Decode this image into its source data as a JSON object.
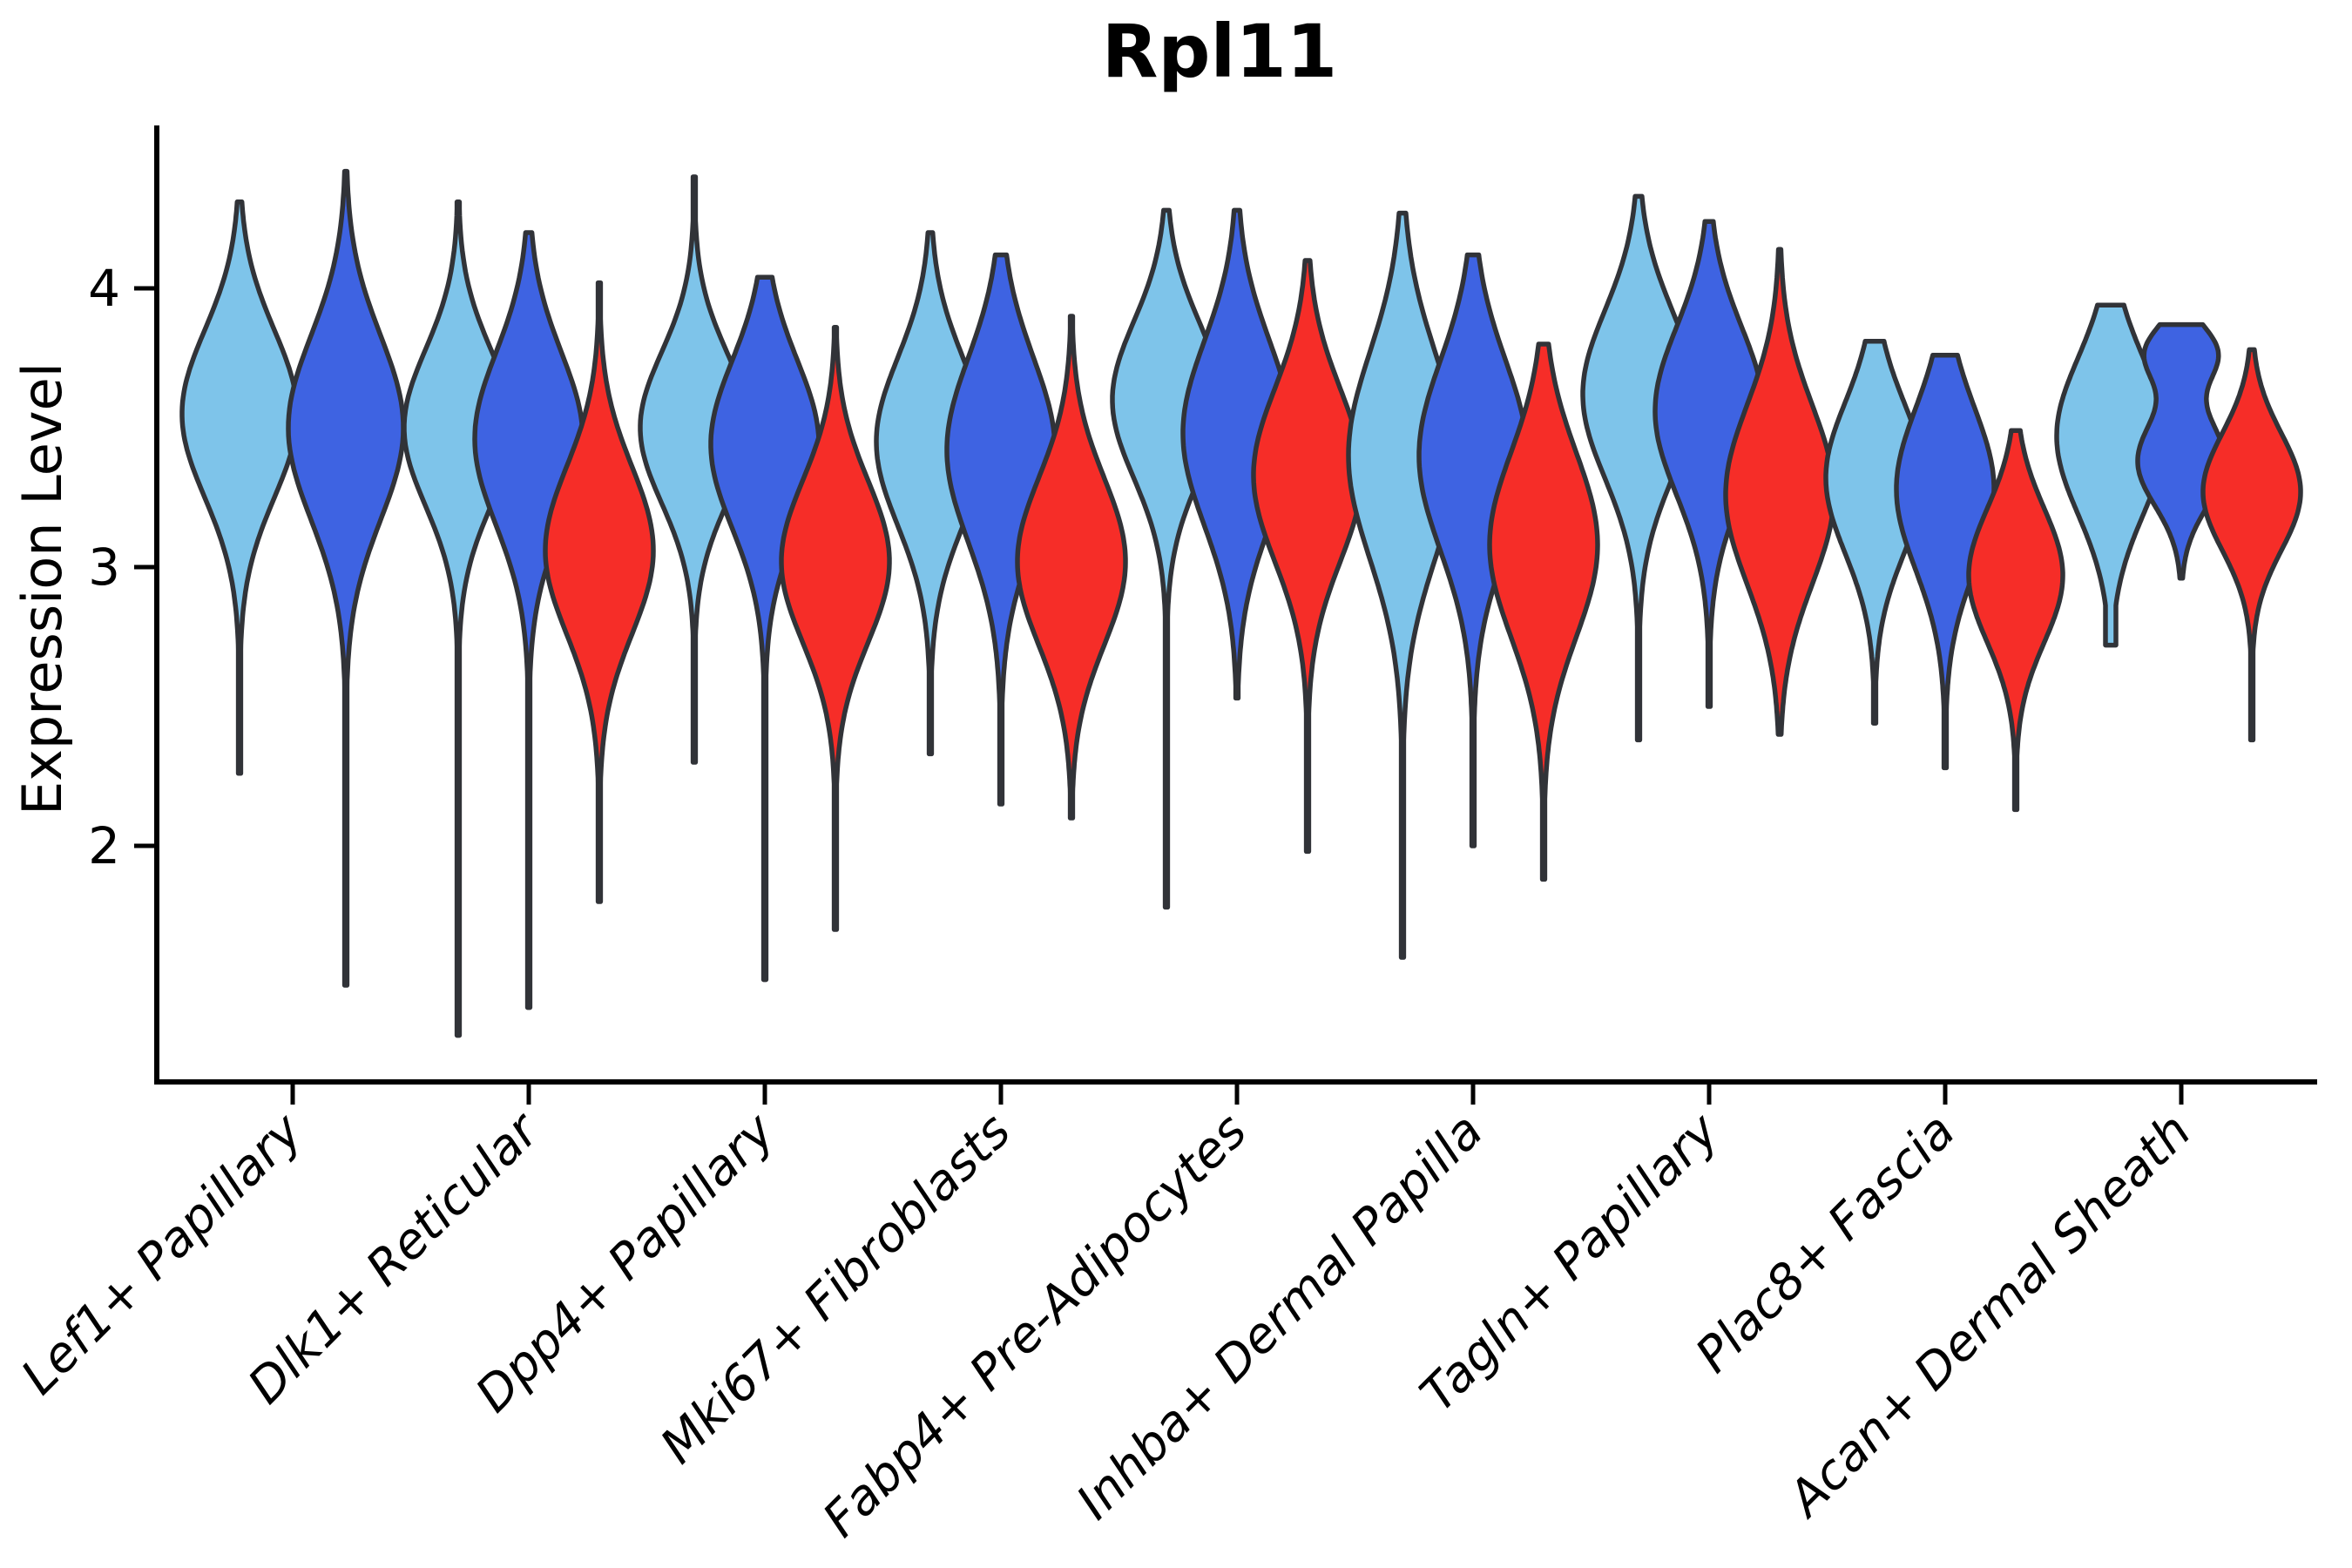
{
  "chart_data": {
    "type": "violin",
    "title": "Rpl11",
    "ylabel": "Expression Level",
    "ylim": [
      1.15,
      4.59
    ],
    "yticks": [
      2,
      3,
      4
    ],
    "grid": false,
    "legend": "none",
    "categories": [
      "Lef1+ Papillary",
      "Dlk1+ Reticular",
      "Dpp4+ Papillary",
      "Mki67+ Fibroblasts",
      "Fabp4+ Pre-Adipocytes",
      "Inhba+ Dermal Papilla",
      "Tagln+ Papillary",
      "Plac8+ Fascia",
      "Acan+ Dermal Sheath"
    ],
    "split_colors": [
      "#7EC4EA",
      "#3E63E2",
      "#F62D28"
    ],
    "outline_color": "#313338",
    "axis_color": "#000000",
    "violins": [
      {
        "category": 0,
        "offset": -61,
        "color": 0,
        "min": 2.26,
        "max": 4.31,
        "peak": 3.55,
        "sigma": 0.3,
        "width": 66
      },
      {
        "category": 0,
        "offset": 61,
        "color": 1,
        "min": 1.5,
        "max": 4.42,
        "peak": 3.5,
        "sigma": 0.33,
        "width": 66
      },
      {
        "category": 1,
        "offset": -81,
        "color": 0,
        "min": 1.32,
        "max": 4.31,
        "peak": 3.5,
        "sigma": 0.28,
        "width": 62
      },
      {
        "category": 1,
        "offset": 0,
        "color": 1,
        "min": 1.42,
        "max": 4.2,
        "peak": 3.46,
        "sigma": 0.31,
        "width": 62
      },
      {
        "category": 1,
        "offset": 81,
        "color": 2,
        "min": 1.8,
        "max": 4.02,
        "peak": 3.06,
        "sigma": 0.3,
        "width": 62
      },
      {
        "category": 2,
        "offset": -81,
        "color": 0,
        "min": 2.3,
        "max": 4.4,
        "peak": 3.5,
        "sigma": 0.27,
        "width": 62
      },
      {
        "category": 2,
        "offset": 0,
        "color": 1,
        "min": 1.52,
        "max": 4.04,
        "peak": 3.44,
        "sigma": 0.3,
        "width": 62
      },
      {
        "category": 2,
        "offset": 81,
        "color": 2,
        "min": 1.7,
        "max": 3.86,
        "peak": 3.02,
        "sigma": 0.29,
        "width": 62
      },
      {
        "category": 3,
        "offset": -81,
        "color": 0,
        "min": 2.33,
        "max": 4.2,
        "peak": 3.45,
        "sigma": 0.3,
        "width": 62
      },
      {
        "category": 3,
        "offset": 0,
        "color": 1,
        "min": 2.15,
        "max": 4.12,
        "peak": 3.42,
        "sigma": 0.33,
        "width": 62
      },
      {
        "category": 3,
        "offset": 81,
        "color": 2,
        "min": 2.1,
        "max": 3.9,
        "peak": 3.02,
        "sigma": 0.3,
        "width": 62
      },
      {
        "category": 4,
        "offset": -81,
        "color": 0,
        "min": 1.78,
        "max": 4.28,
        "peak": 3.6,
        "sigma": 0.28,
        "width": 62
      },
      {
        "category": 4,
        "offset": 0,
        "color": 1,
        "min": 2.53,
        "max": 4.28,
        "peak": 3.48,
        "sigma": 0.33,
        "width": 62
      },
      {
        "category": 4,
        "offset": 81,
        "color": 2,
        "min": 1.98,
        "max": 4.1,
        "peak": 3.33,
        "sigma": 0.31,
        "width": 62
      },
      {
        "category": 5,
        "offset": -81,
        "color": 0,
        "min": 1.6,
        "max": 4.27,
        "peak": 3.4,
        "sigma": 0.37,
        "width": 62
      },
      {
        "category": 5,
        "offset": 0,
        "color": 1,
        "min": 2.0,
        "max": 4.12,
        "peak": 3.4,
        "sigma": 0.34,
        "width": 62
      },
      {
        "category": 5,
        "offset": 81,
        "color": 2,
        "min": 1.88,
        "max": 3.8,
        "peak": 3.08,
        "sigma": 0.33,
        "width": 62
      },
      {
        "category": 6,
        "offset": -81,
        "color": 0,
        "min": 2.38,
        "max": 4.33,
        "peak": 3.62,
        "sigma": 0.3,
        "width": 64
      },
      {
        "category": 6,
        "offset": 0,
        "color": 1,
        "min": 2.5,
        "max": 4.24,
        "peak": 3.56,
        "sigma": 0.3,
        "width": 62
      },
      {
        "category": 6,
        "offset": 81,
        "color": 2,
        "min": 2.4,
        "max": 4.14,
        "peak": 3.26,
        "sigma": 0.32,
        "width": 62
      },
      {
        "category": 7,
        "offset": -81,
        "color": 0,
        "min": 2.44,
        "max": 3.81,
        "peak": 3.32,
        "sigma": 0.27,
        "width": 56
      },
      {
        "category": 7,
        "offset": 0,
        "color": 1,
        "min": 2.28,
        "max": 3.76,
        "peak": 3.28,
        "sigma": 0.29,
        "width": 56
      },
      {
        "category": 7,
        "offset": 81,
        "color": 2,
        "min": 2.13,
        "max": 3.49,
        "peak": 2.97,
        "sigma": 0.24,
        "width": 54
      },
      {
        "category": 8,
        "offset": -81,
        "color": 0,
        "min": 2.72,
        "max": 3.94,
        "peak": 3.47,
        "sigma": 0.28,
        "width": 62,
        "floor": 6
      },
      {
        "category": 8,
        "offset": 0,
        "color": 1,
        "min": 2.96,
        "max": 3.87,
        "width": 50,
        "components": [
          {
            "peak": 3.77,
            "sigma": 0.1,
            "amp": 0.8
          },
          {
            "peak": 3.38,
            "sigma": 0.16,
            "amp": 1.0
          }
        ]
      },
      {
        "category": 8,
        "offset": 81,
        "color": 2,
        "min": 2.38,
        "max": 3.78,
        "peak": 3.27,
        "sigma": 0.21,
        "width": 56
      }
    ]
  }
}
